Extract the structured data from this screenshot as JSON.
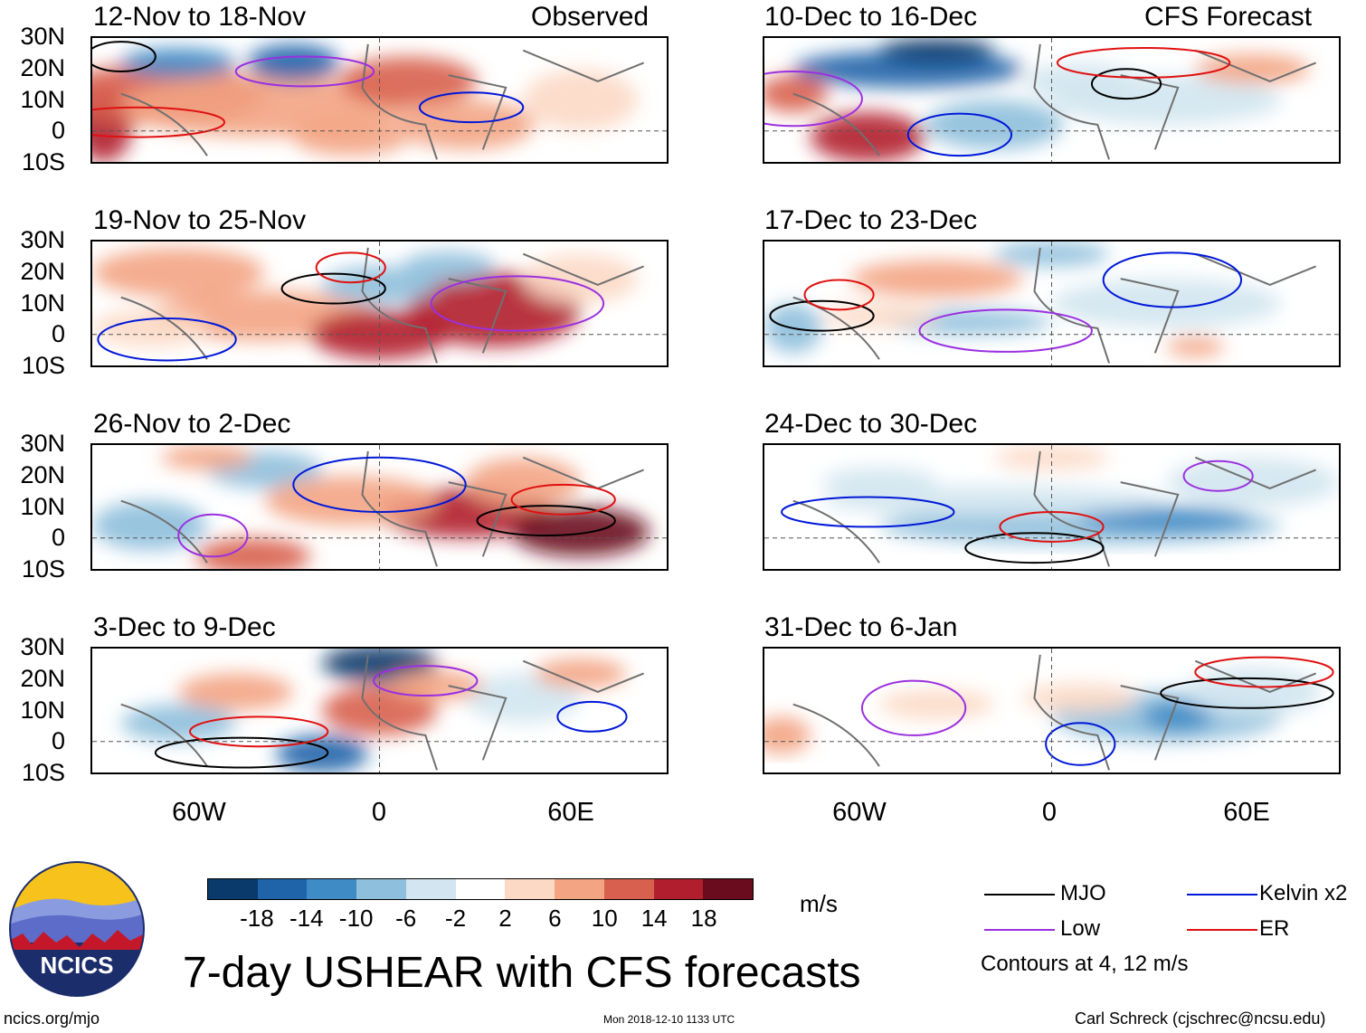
{
  "column_headers": {
    "observed": "Observed",
    "forecast": "CFS Forecast"
  },
  "panels": [
    {
      "title": "12-Nov to 18-Nov",
      "kind": "observed"
    },
    {
      "title": "19-Nov to 25-Nov",
      "kind": "observed"
    },
    {
      "title": "26-Nov to 2-Dec",
      "kind": "observed"
    },
    {
      "title": "3-Dec to 9-Dec",
      "kind": "observed"
    },
    {
      "title": "10-Dec to 16-Dec",
      "kind": "forecast"
    },
    {
      "title": "17-Dec to 23-Dec",
      "kind": "forecast"
    },
    {
      "title": "24-Dec to 30-Dec",
      "kind": "forecast"
    },
    {
      "title": "31-Dec to 6-Jan",
      "kind": "forecast"
    }
  ],
  "lat_labels": [
    "30N",
    "20N",
    "10N",
    "0",
    "10S"
  ],
  "lon_labels": [
    "60W",
    "0",
    "60E"
  ],
  "colorbar": {
    "colors": [
      "#0a3a6b",
      "#1f63a8",
      "#3f8bc5",
      "#8ebfdc",
      "#d2e5f0",
      "#ffffff",
      "#fcd9c5",
      "#f3a483",
      "#d8604e",
      "#b11f2e",
      "#6b0b1e"
    ],
    "tick_labels": [
      "-18",
      "-14",
      "-10",
      "-6",
      "-2",
      "2",
      "6",
      "10",
      "14",
      "18"
    ],
    "units": "m/s"
  },
  "legend": {
    "items": [
      {
        "label": "MJO",
        "color": "#000000"
      },
      {
        "label": "Kelvin x2",
        "color": "#0018d8"
      },
      {
        "label": "Low",
        "color": "#9b30e0"
      },
      {
        "label": "ER",
        "color": "#e01010"
      }
    ],
    "contours_note": "Contours at 4, 12 m/s"
  },
  "main_title": "7-day USHEAR with CFS forecasts",
  "footer": {
    "site": "ncics.org/mjo",
    "timestamp": "Mon 2018-12-10 1133 UTC",
    "credit": "Carl Schreck (cjschrec@ncsu.edu)"
  },
  "logo": {
    "text": "NCICS"
  }
}
